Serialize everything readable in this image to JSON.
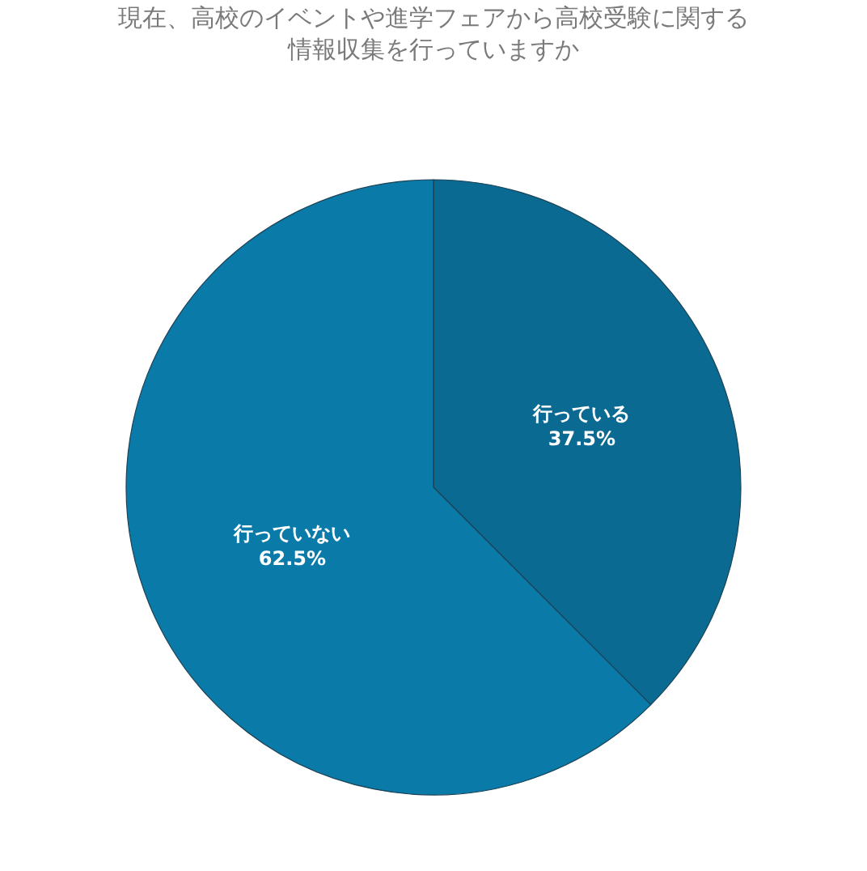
{
  "chart_data": {
    "type": "pie",
    "title": "現在、高校のイベントや進学フェアから高校受験に関する情報収集を行っていますか",
    "categories": [
      "行っている",
      "行っていない"
    ],
    "values": [
      37.5,
      62.5
    ],
    "value_labels": [
      "37.5%",
      "62.5%"
    ],
    "colors": [
      "#0b6a92",
      "#0a7aa9"
    ],
    "legend": false
  }
}
